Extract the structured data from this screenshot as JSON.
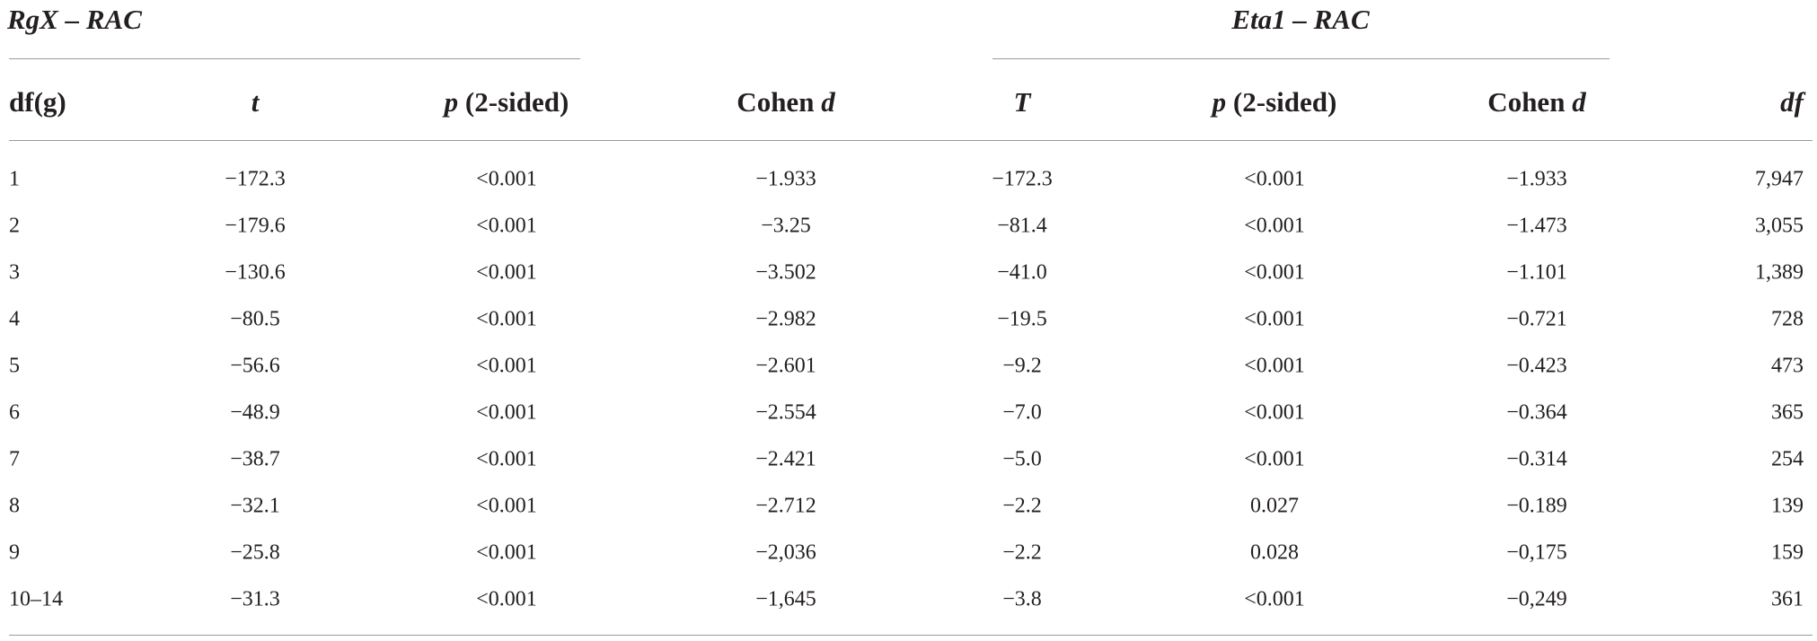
{
  "groups": [
    "RgX – RAC",
    "Eta1 – RAC"
  ],
  "headers": [
    [
      "df(g)"
    ],
    [
      "t"
    ],
    [
      "p",
      "(2-sided)"
    ],
    [
      "Cohen",
      "d"
    ],
    [
      "T"
    ],
    [
      "p",
      "(2-sided)"
    ],
    [
      "Cohen",
      "d"
    ],
    [
      "df"
    ]
  ],
  "rows": [
    [
      "1",
      "−172.3",
      "<0.001",
      "−1.933",
      "−172.3",
      "<0.001",
      "−1.933",
      "7,947"
    ],
    [
      "2",
      "−179.6",
      "<0.001",
      "−3.25",
      "−81.4",
      "<0.001",
      "−1.473",
      "3,055"
    ],
    [
      "3",
      "−130.6",
      "<0.001",
      "−3.502",
      "−41.0",
      "<0.001",
      "−1.101",
      "1,389"
    ],
    [
      "4",
      "−80.5",
      "<0.001",
      "−2.982",
      "−19.5",
      "<0.001",
      "−0.721",
      "728"
    ],
    [
      "5",
      "−56.6",
      "<0.001",
      "−2.601",
      "−9.2",
      "<0.001",
      "−0.423",
      "473"
    ],
    [
      "6",
      "−48.9",
      "<0.001",
      "−2.554",
      "−7.0",
      "<0.001",
      "−0.364",
      "365"
    ],
    [
      "7",
      "−38.7",
      "<0.001",
      "−2.421",
      "−5.0",
      "<0.001",
      "−0.314",
      "254"
    ],
    [
      "8",
      "−32.1",
      "<0.001",
      "−2.712",
      "−2.2",
      "0.027",
      "−0.189",
      "139"
    ],
    [
      "9",
      "−25.8",
      "<0.001",
      "−2,036",
      "−2.2",
      "0.028",
      "−0,175",
      "159"
    ],
    [
      "10–14",
      "−31.3",
      "<0.001",
      "−1,645",
      "−3.8",
      "<0.001",
      "−0,249",
      "361"
    ]
  ]
}
